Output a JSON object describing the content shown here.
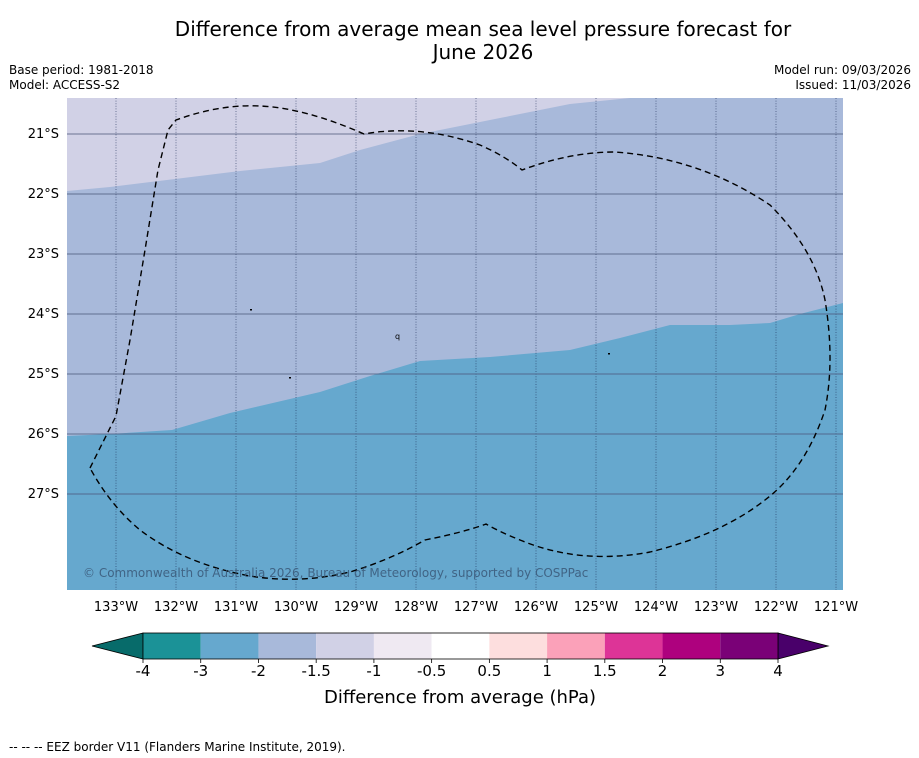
{
  "header": {
    "title_line1": "Difference from average mean sea level pressure forecast for",
    "title_line2": "June 2026",
    "base_period": "Base period: 1981-2018",
    "model": "Model: ACCESS-S2",
    "model_run": "Model run: 09/03/2026",
    "issued": "Issued: 11/03/2026"
  },
  "map": {
    "lon_labels": [
      "133°W",
      "132°W",
      "131°W",
      "130°W",
      "129°W",
      "128°W",
      "127°W",
      "126°W",
      "125°W",
      "124°W",
      "123°W",
      "122°W",
      "121°W"
    ],
    "lat_labels": [
      "21°S",
      "22°S",
      "23°S",
      "24°S",
      "25°S",
      "26°S",
      "27°S"
    ],
    "copyright": "© Commonwealth of Australia 2026, Bureau of Meteorology, supported by COSPPac",
    "region_colors": {
      "band_-1.5_-1": "#d1d1e6",
      "band_-2_-1.5": "#a8b9da",
      "band_-3_-2": "#66a8ce"
    },
    "eez_border": "EEZ border (dashed)"
  },
  "colorbar": {
    "ticks": [
      "-4",
      "-3",
      "-2",
      "-1.5",
      "-1",
      "-0.5",
      "0.5",
      "1",
      "1.5",
      "2",
      "3",
      "4"
    ],
    "colors": [
      "#1b9297",
      "#66a8ce",
      "#a8b9da",
      "#d1d1e6",
      "#efe9f2",
      "#ffffff",
      "#fddede",
      "#fba1b9",
      "#dd3497",
      "#ae017e",
      "#7a0177"
    ],
    "under_color": "#076b6a",
    "over_color": "#49006a",
    "label": "Difference from average (hPa)"
  },
  "footer": {
    "note": "--  --  -- EEZ border V11 (Flanders Marine Institute, 2019)."
  }
}
